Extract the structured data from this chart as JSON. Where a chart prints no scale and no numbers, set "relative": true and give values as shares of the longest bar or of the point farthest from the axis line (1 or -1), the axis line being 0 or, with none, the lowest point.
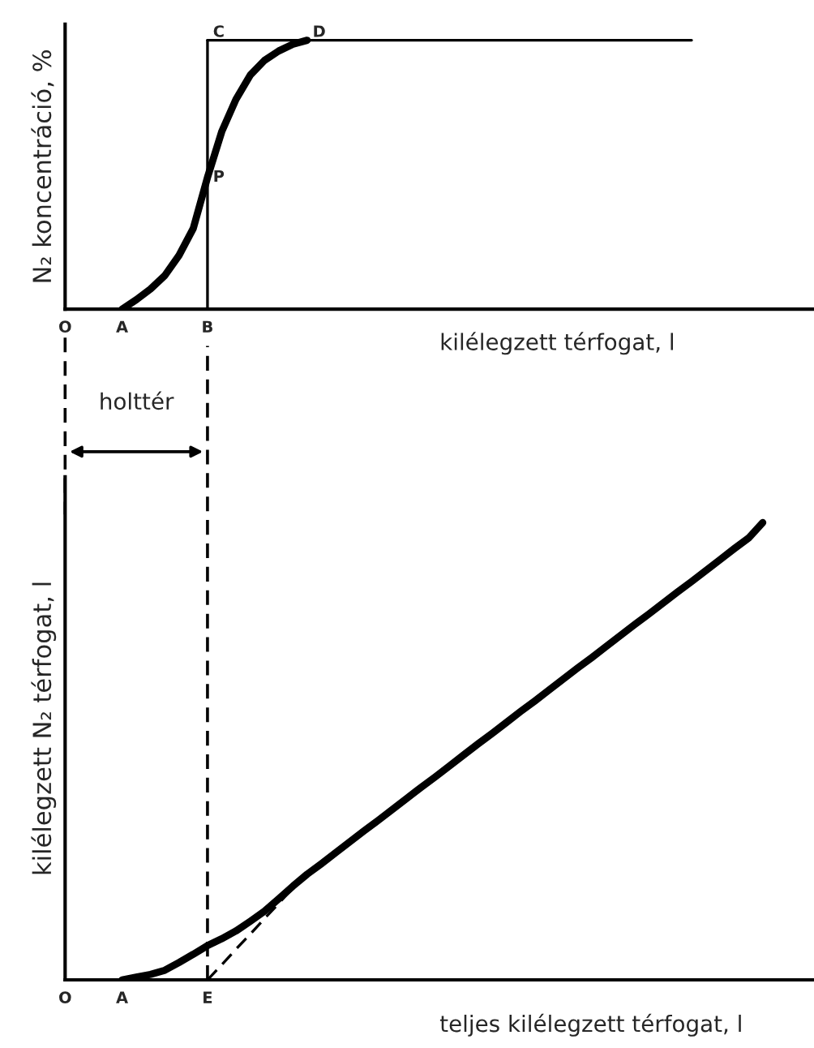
{
  "chart_data": [
    {
      "type": "line",
      "relative": true,
      "ylabel": "N₂ koncentráció, %",
      "xlabel": "kilélegzett térfogat, l",
      "categories": [
        "O",
        null,
        null,
        null,
        "A",
        null,
        null,
        null,
        null,
        null,
        "B",
        null,
        null,
        null,
        null,
        null,
        null,
        null,
        null,
        null,
        null,
        null,
        null,
        null,
        null,
        null,
        null,
        null,
        null,
        null,
        null,
        null,
        null,
        null,
        null,
        null,
        null,
        null,
        null,
        null,
        null,
        null,
        null,
        null,
        null,
        null,
        null,
        null,
        null,
        null,
        null,
        null,
        null
      ],
      "series": [
        {
          "color": "#000000",
          "line_style": "solid",
          "values": [
            null,
            null,
            null,
            null,
            0,
            0.035,
            0.075,
            0.125,
            0.2,
            0.3,
            0.49,
            0.66,
            0.78,
            0.87,
            0.925,
            0.96,
            0.985,
            1,
            null,
            null,
            null,
            null,
            null,
            null,
            null,
            null,
            null,
            null,
            null,
            null,
            null,
            null,
            null,
            null,
            null,
            null,
            null,
            null,
            null,
            null,
            null,
            null,
            null,
            null,
            null,
            null,
            null,
            null,
            null,
            null,
            null,
            null,
            null
          ]
        },
        {
          "color": "#000000",
          "line_style": "solid",
          "values": [
            null,
            null,
            null,
            null,
            null,
            null,
            null,
            null,
            null,
            null,
            1,
            1,
            1,
            1,
            1,
            1,
            1,
            1,
            1,
            1,
            1,
            1,
            1,
            1,
            1,
            1,
            1,
            1,
            1,
            1,
            1,
            1,
            1,
            1,
            1,
            1,
            1,
            1,
            1,
            1,
            1,
            1,
            1,
            1,
            1,
            null,
            null,
            null,
            null,
            null,
            null,
            null,
            null
          ]
        }
      ],
      "ref_lines": [
        {
          "axis": "x",
          "value": "B",
          "line_style": "solid",
          "color": "#000000"
        }
      ],
      "annotations": [
        {
          "text": "C",
          "x": "B",
          "y": 1
        },
        {
          "text": "D",
          "y": 1
        },
        {
          "text": "P",
          "x": "B",
          "y": 0.49
        },
        "holttér"
      ]
    },
    {
      "type": "line",
      "relative": true,
      "ylabel": "kilélegzett N₂ térfogat, l",
      "xlabel": "teljes kilélegzett térfogat, l",
      "categories": [
        "O",
        null,
        null,
        null,
        "A",
        null,
        null,
        null,
        null,
        null,
        "E",
        null,
        null,
        null,
        null,
        null,
        null,
        null,
        null,
        null,
        null,
        null,
        null,
        null,
        null,
        null,
        null,
        null,
        null,
        null,
        null,
        null,
        null,
        null,
        null,
        null,
        null,
        null,
        null,
        null,
        null,
        null,
        null,
        null,
        null,
        null,
        null,
        null,
        null,
        null,
        null,
        null,
        null
      ],
      "ref_lines": [
        {
          "axis": "x",
          "value": "E",
          "line_style": "dashed",
          "color": "#000000"
        }
      ],
      "series": [
        {
          "color": "#000000",
          "line_style": "solid",
          "values": [
            null,
            null,
            null,
            null,
            0,
            0.006,
            0.012,
            0.021,
            0.038,
            0.056,
            0.075,
            0.09,
            0.107,
            0.128,
            0.15,
            0.177,
            0.205,
            0.231,
            0.254,
            0.278,
            0.302,
            0.326,
            0.349,
            0.373,
            0.397,
            0.421,
            0.444,
            0.468,
            0.492,
            0.516,
            0.539,
            0.563,
            0.587,
            0.61,
            0.634,
            0.658,
            0.682,
            0.705,
            0.729,
            0.753,
            0.777,
            0.8,
            0.824,
            0.848,
            0.871,
            0.895,
            0.919,
            0.943,
            0.966,
            1,
            null,
            null,
            null
          ]
        },
        {
          "color": "#000000",
          "line_style": "dashed",
          "values": [
            null,
            null,
            null,
            null,
            null,
            null,
            null,
            null,
            null,
            null,
            0,
            0.033,
            0.067,
            0.1,
            0.134,
            0.167,
            0.201,
            0.23,
            null,
            null,
            null,
            null,
            null,
            null,
            null,
            null,
            null,
            null,
            null,
            null,
            null,
            null,
            null,
            null,
            null,
            null,
            null,
            null,
            null,
            null,
            null,
            null,
            null,
            null,
            null,
            null,
            null,
            null,
            null,
            null,
            null,
            null,
            null
          ]
        }
      ]
    }
  ]
}
